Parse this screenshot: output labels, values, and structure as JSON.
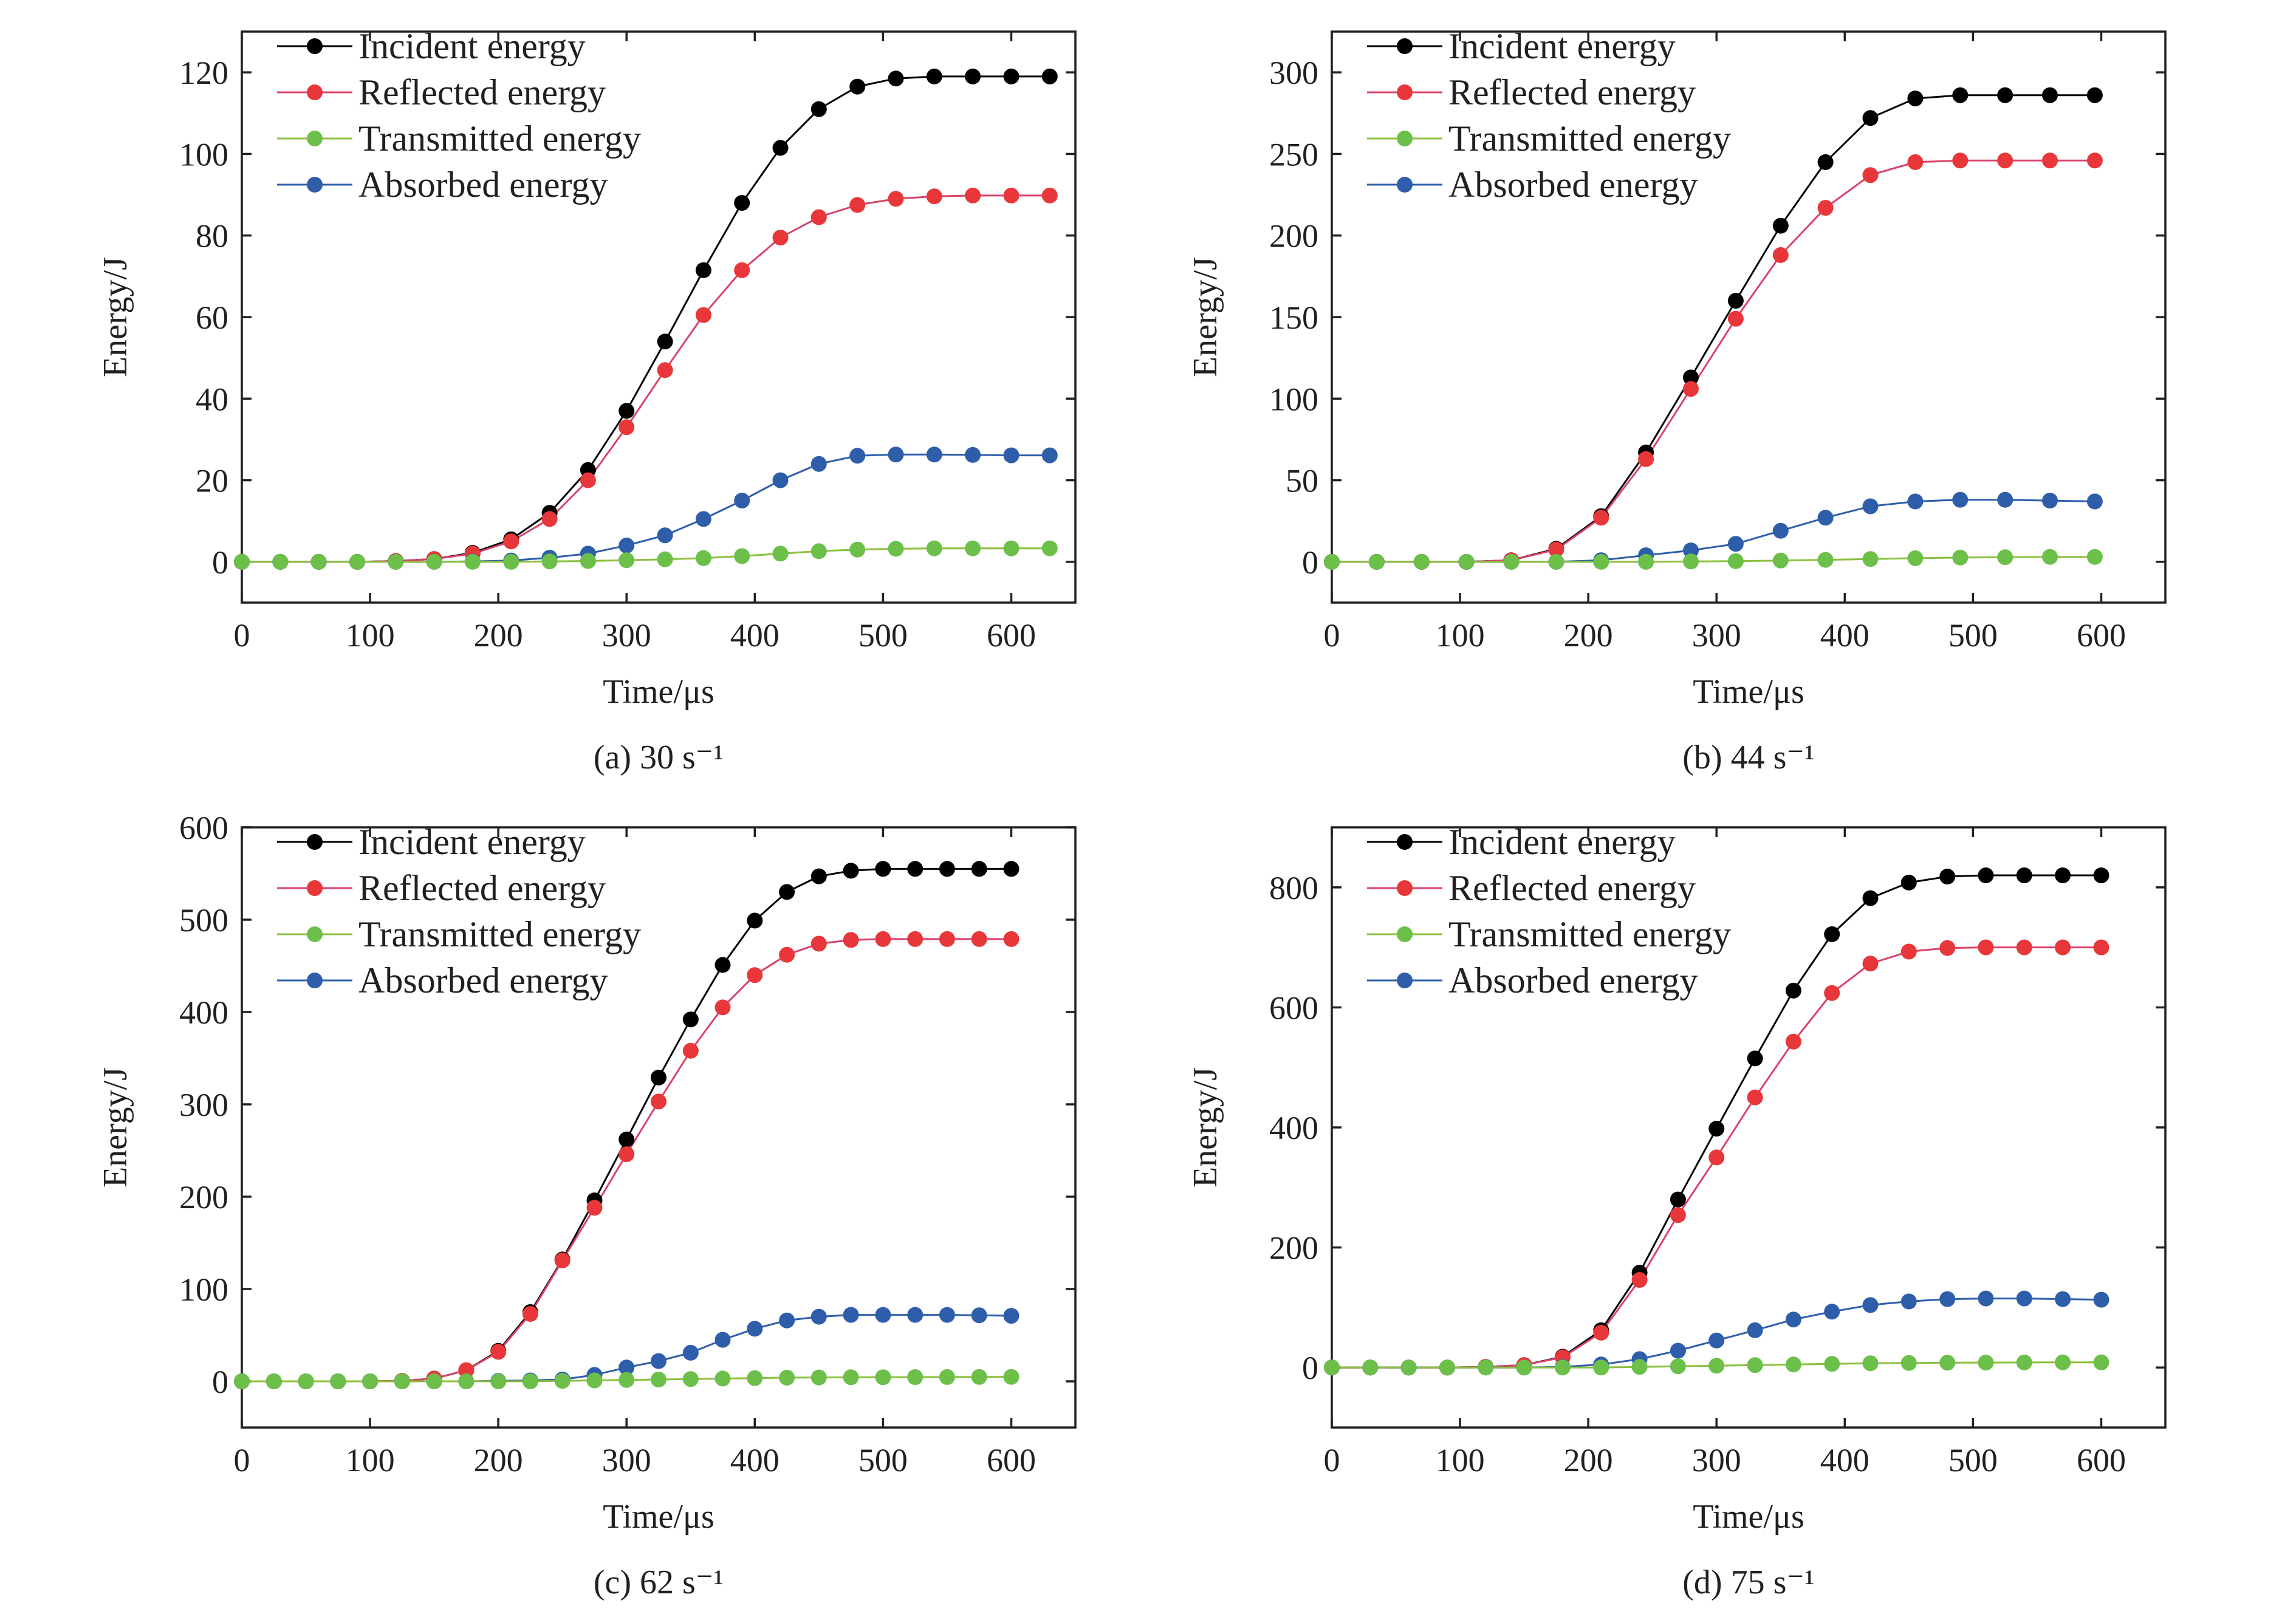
{
  "figure": {
    "colors": {
      "Incident energy": "#000000",
      "Reflected energy": "#e8373a",
      "Transmitted energy": "#6cc04a",
      "Absorbed energy": "#2e5eaa",
      "axis": "#231f20",
      "line_reflected": "#d9426a",
      "line_transmitted": "#8cbf3f"
    }
  },
  "chart_data": [
    {
      "type": "line",
      "caption": "(a) 30 s⁻¹",
      "xlabel": "Time/μs",
      "ylabel": "Energy/J",
      "xlim": [
        0,
        650
      ],
      "ylim": [
        -10,
        130
      ],
      "xticks": [
        0,
        100,
        200,
        300,
        400,
        500,
        600
      ],
      "yticks": [
        0,
        20,
        40,
        60,
        80,
        100,
        120
      ],
      "legend_position": "top-left",
      "grid": false,
      "x": [
        0,
        30,
        60,
        90,
        120,
        150,
        180,
        210,
        240,
        270,
        300,
        330,
        360,
        390,
        420,
        450,
        480,
        510,
        540,
        570,
        600,
        630
      ],
      "series": [
        {
          "name": "Incident energy",
          "values": [
            0,
            0,
            0,
            0,
            0.2,
            0.7,
            2.2,
            5.5,
            12,
            22.5,
            37,
            54,
            71.5,
            88,
            101.5,
            111,
            116.5,
            118.5,
            119,
            119,
            119,
            119
          ]
        },
        {
          "name": "Reflected energy",
          "values": [
            0,
            0,
            0,
            0,
            0.2,
            0.7,
            2,
            5,
            10.5,
            20,
            33,
            47,
            60.5,
            71.5,
            79.5,
            84.5,
            87.5,
            89,
            89.6,
            89.8,
            89.8,
            89.8
          ]
        },
        {
          "name": "Transmitted energy",
          "values": [
            0,
            0,
            0,
            0,
            0,
            0,
            0,
            0,
            0.1,
            0.2,
            0.4,
            0.6,
            0.9,
            1.4,
            2,
            2.6,
            3,
            3.2,
            3.3,
            3.3,
            3.3,
            3.3
          ]
        },
        {
          "name": "Absorbed energy",
          "values": [
            0,
            0,
            0,
            0,
            0,
            0,
            0.1,
            0.3,
            1,
            2,
            4,
            6.5,
            10.5,
            15,
            20,
            24,
            26,
            26.3,
            26.3,
            26.2,
            26.1,
            26.1
          ]
        }
      ]
    },
    {
      "type": "line",
      "caption": "(b) 44 s⁻¹",
      "xlabel": "Time/μs",
      "ylabel": "Energy/J",
      "xlim": [
        0,
        650
      ],
      "ylim": [
        -25,
        325
      ],
      "xticks": [
        0,
        100,
        200,
        300,
        400,
        500,
        600
      ],
      "yticks": [
        0,
        50,
        100,
        150,
        200,
        250,
        300
      ],
      "legend_position": "top-left",
      "grid": false,
      "x": [
        0,
        35,
        70,
        105,
        140,
        175,
        210,
        245,
        280,
        315,
        350,
        385,
        420,
        455,
        490,
        525,
        560,
        595
      ],
      "series": [
        {
          "name": "Incident energy",
          "values": [
            0,
            0,
            0,
            0,
            1,
            8,
            28,
            67,
            113,
            160,
            206,
            245,
            272,
            284,
            286,
            286,
            286,
            286
          ]
        },
        {
          "name": "Reflected energy",
          "values": [
            0,
            0,
            0,
            0,
            1,
            7.5,
            27,
            63,
            106,
            149,
            188,
            217,
            237,
            245,
            246,
            246,
            246,
            246
          ]
        },
        {
          "name": "Transmitted energy",
          "values": [
            0,
            0,
            0,
            0,
            0,
            0,
            0,
            0,
            0.2,
            0.4,
            0.8,
            1.2,
            1.7,
            2.2,
            2.6,
            2.8,
            3,
            3
          ]
        },
        {
          "name": "Absorbed energy",
          "values": [
            0,
            0,
            0,
            0,
            0,
            0,
            1,
            4,
            7,
            11,
            19,
            27,
            34,
            37,
            38,
            38,
            37.5,
            37
          ]
        }
      ]
    },
    {
      "type": "line",
      "caption": "(c) 62 s⁻¹",
      "xlabel": "Time/μs",
      "ylabel": "Energy/J",
      "xlim": [
        0,
        650
      ],
      "ylim": [
        -50,
        600
      ],
      "xticks": [
        0,
        100,
        200,
        300,
        400,
        500,
        600
      ],
      "yticks": [
        0,
        100,
        200,
        300,
        400,
        500,
        600
      ],
      "legend_position": "top-left",
      "grid": false,
      "x": [
        0,
        25,
        50,
        75,
        100,
        125,
        150,
        175,
        200,
        225,
        250,
        275,
        300,
        325,
        350,
        375,
        400,
        425,
        450,
        475,
        500,
        525,
        550,
        575,
        600
      ],
      "series": [
        {
          "name": "Incident energy",
          "values": [
            0,
            0,
            0,
            0,
            0,
            0.5,
            3,
            12,
            33,
            75,
            132,
            196,
            262,
            329,
            392,
            451,
            499,
            530,
            547,
            553,
            555,
            555,
            555,
            555,
            555
          ]
        },
        {
          "name": "Reflected energy",
          "values": [
            0,
            0,
            0,
            0,
            0,
            0.5,
            3,
            12,
            32,
            73,
            131,
            188,
            246,
            303,
            358,
            405,
            440,
            462,
            474,
            478,
            479,
            479,
            479,
            479,
            479
          ]
        },
        {
          "name": "Transmitted energy",
          "values": [
            0,
            0,
            0,
            0,
            0,
            0,
            0,
            0,
            0,
            0,
            0.5,
            1,
            1.5,
            2,
            2.5,
            3,
            3.5,
            4,
            4.2,
            4.4,
            4.5,
            4.6,
            4.7,
            4.8,
            4.9
          ]
        },
        {
          "name": "Absorbed energy",
          "values": [
            0,
            0,
            0,
            0,
            0,
            0,
            0,
            0,
            0.5,
            1,
            2,
            7,
            15,
            22,
            31,
            45,
            57,
            66,
            70,
            72,
            72,
            72,
            72,
            71.5,
            71
          ]
        }
      ]
    },
    {
      "type": "line",
      "caption": "(d) 75 s⁻¹",
      "xlabel": "Time/μs",
      "ylabel": "Energy/J",
      "xlim": [
        0,
        650
      ],
      "ylim": [
        -100,
        900
      ],
      "xticks": [
        0,
        100,
        200,
        300,
        400,
        500,
        600
      ],
      "yticks": [
        0,
        200,
        400,
        600,
        800
      ],
      "legend_position": "top-left",
      "grid": false,
      "x": [
        0,
        30,
        60,
        90,
        120,
        150,
        180,
        210,
        240,
        270,
        300,
        330,
        360,
        390,
        420,
        450,
        480,
        510,
        540,
        570,
        600
      ],
      "series": [
        {
          "name": "Incident energy",
          "values": [
            0,
            0,
            0,
            0,
            1,
            4,
            18,
            62,
            158,
            280,
            398,
            515,
            628,
            722,
            782,
            808,
            818,
            820,
            820,
            820,
            820
          ]
        },
        {
          "name": "Reflected energy",
          "values": [
            0,
            0,
            0,
            0,
            1,
            4,
            17,
            58,
            146,
            254,
            350,
            450,
            543,
            624,
            673,
            693,
            699,
            700,
            700,
            700,
            700
          ]
        },
        {
          "name": "Transmitted energy",
          "values": [
            0,
            0,
            0,
            0,
            0,
            0,
            0,
            0,
            1,
            2,
            3,
            4,
            5,
            6,
            7,
            7.5,
            8,
            8.2,
            8.4,
            8.5,
            8.5
          ]
        },
        {
          "name": "Absorbed energy",
          "values": [
            0,
            0,
            0,
            0,
            0,
            0,
            1,
            5,
            14,
            28,
            45,
            62,
            80,
            93,
            104,
            110,
            114,
            115,
            115,
            114,
            113
          ]
        }
      ]
    }
  ]
}
